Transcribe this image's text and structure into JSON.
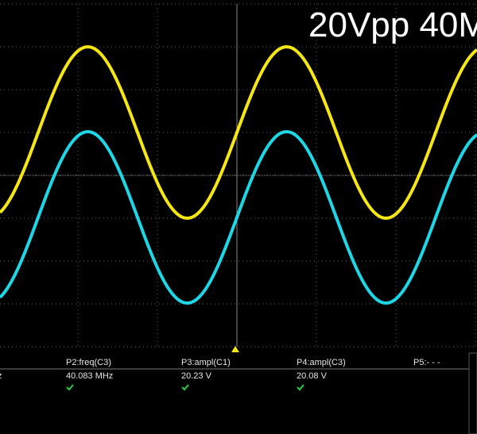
{
  "screen": {
    "title": "20Vpp 40M",
    "measurements": [
      {
        "label": ")",
        "value": "z"
      },
      {
        "label": "P2:freq(C3)",
        "value": "40.083 MHz"
      },
      {
        "label": "P3:ampl(C1)",
        "value": "20.23 V"
      },
      {
        "label": "P4:ampl(C3)",
        "value": "20.08 V"
      },
      {
        "label": "P5:- - -"
      }
    ]
  }
}
